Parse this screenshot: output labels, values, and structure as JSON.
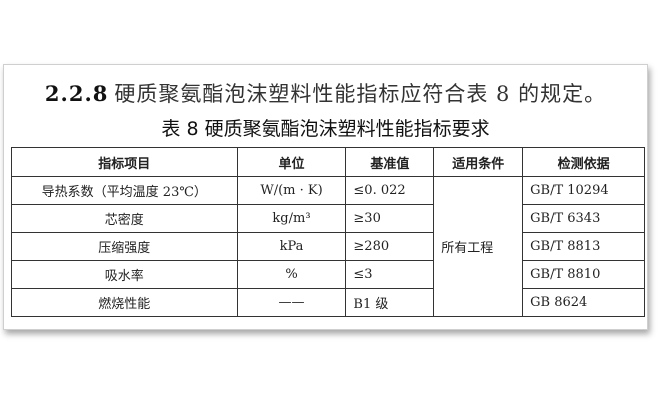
{
  "heading": {
    "number": "2.2.8",
    "text": "硬质聚氨酯泡沫塑料性能指标应符合表 8 的规定。"
  },
  "table_title": "表 8 硬质聚氨酯泡沫塑料性能指标要求",
  "columns": [
    "指标项目",
    "单位",
    "基准值",
    "适用条件",
    "检测依据"
  ],
  "rows": [
    {
      "item": "导热系数（平均温度 23℃）",
      "unit": "W/(m · K)",
      "value": "≤0. 022",
      "standard": "GB/T 10294"
    },
    {
      "item": "芯密度",
      "unit": "kg/m³",
      "value": "≥30",
      "standard": "GB/T 6343"
    },
    {
      "item": "压缩强度",
      "unit": "kPa",
      "value": "≥280",
      "standard": "GB/T 8813"
    },
    {
      "item": "吸水率",
      "unit": "%",
      "value": "≤3",
      "standard": "GB/T 8810"
    },
    {
      "item": "燃烧性能",
      "unit": "——",
      "value": "B1 级",
      "standard": "GB 8624"
    }
  ],
  "condition": "所有工程"
}
